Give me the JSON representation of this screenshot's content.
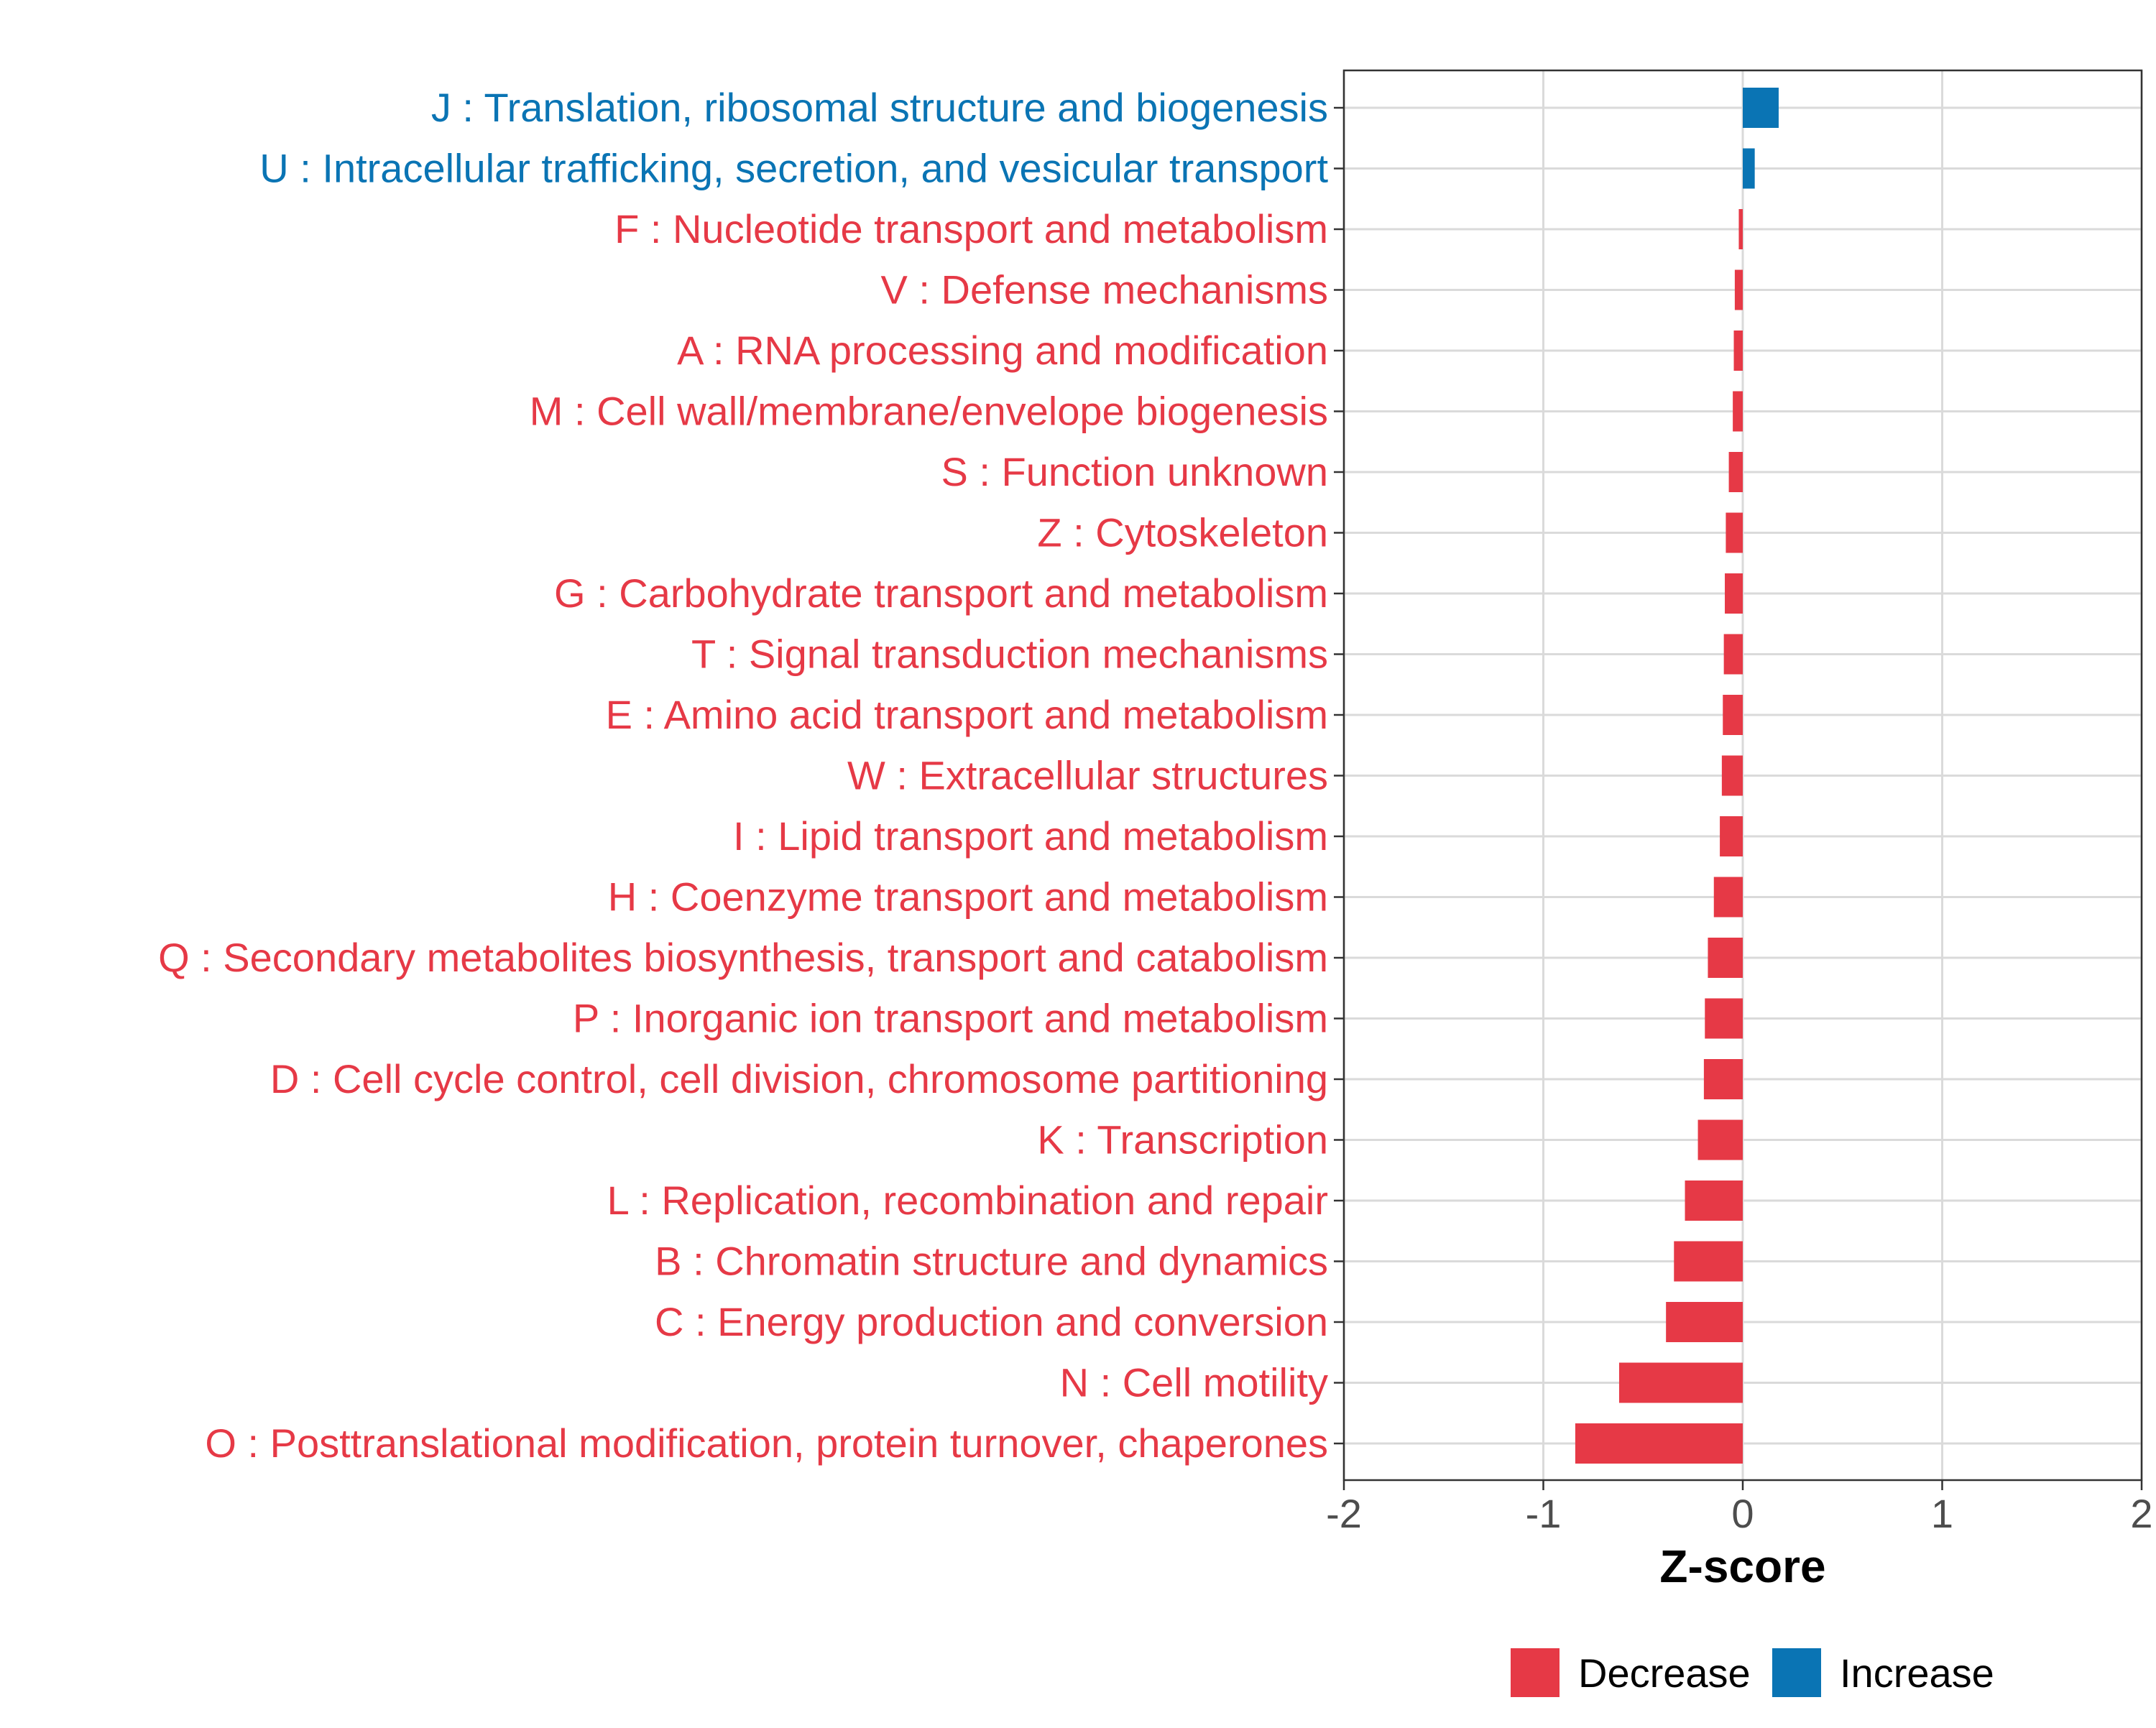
{
  "colors": {
    "decrease": "#E63946",
    "increase": "#0A74B4",
    "grid": "#DADADA",
    "axis_text": "#4D4D4D",
    "frame": "#333333"
  },
  "chart_data": {
    "type": "bar",
    "orientation": "horizontal",
    "title": "",
    "xlabel": "Z-score",
    "ylabel": "",
    "xlim": [
      -2,
      2
    ],
    "x_ticks": [
      -2,
      -1,
      0,
      1,
      2
    ],
    "x_tick_labels": [
      "-2",
      "-1",
      "0",
      "1",
      "2"
    ],
    "grid": true,
    "legend": {
      "position": "bottom",
      "entries": [
        {
          "label": "Decrease",
          "color_key": "decrease"
        },
        {
          "label": "Increase",
          "color_key": "increase"
        }
      ]
    },
    "categories": [
      {
        "label": "J : Translation, ribosomal structure and biogenesis",
        "value": 0.18,
        "direction": "increase"
      },
      {
        "label": "U : Intracellular trafficking, secretion, and vesicular transport",
        "value": 0.06,
        "direction": "increase"
      },
      {
        "label": "F : Nucleotide transport and metabolism",
        "value": -0.02,
        "direction": "decrease"
      },
      {
        "label": "V : Defense mechanisms",
        "value": -0.04,
        "direction": "decrease"
      },
      {
        "label": "A : RNA processing and modification",
        "value": -0.045,
        "direction": "decrease"
      },
      {
        "label": "M : Cell wall/membrane/envelope biogenesis",
        "value": -0.05,
        "direction": "decrease"
      },
      {
        "label": "S : Function unknown",
        "value": -0.07,
        "direction": "decrease"
      },
      {
        "label": "Z : Cytoskeleton",
        "value": -0.085,
        "direction": "decrease"
      },
      {
        "label": "G : Carbohydrate transport and metabolism",
        "value": -0.09,
        "direction": "decrease"
      },
      {
        "label": "T : Signal transduction mechanisms",
        "value": -0.095,
        "direction": "decrease"
      },
      {
        "label": "E : Amino acid transport and metabolism",
        "value": -0.1,
        "direction": "decrease"
      },
      {
        "label": "W : Extracellular structures",
        "value": -0.105,
        "direction": "decrease"
      },
      {
        "label": "I : Lipid transport and metabolism",
        "value": -0.115,
        "direction": "decrease"
      },
      {
        "label": "H : Coenzyme transport and metabolism",
        "value": -0.145,
        "direction": "decrease"
      },
      {
        "label": "Q : Secondary metabolites biosynthesis, transport and catabolism",
        "value": -0.175,
        "direction": "decrease"
      },
      {
        "label": "P : Inorganic ion transport and metabolism",
        "value": -0.19,
        "direction": "decrease"
      },
      {
        "label": "D : Cell cycle control, cell division, chromosome partitioning",
        "value": -0.195,
        "direction": "decrease"
      },
      {
        "label": "K : Transcription",
        "value": -0.225,
        "direction": "decrease"
      },
      {
        "label": "L : Replication, recombination and repair",
        "value": -0.29,
        "direction": "decrease"
      },
      {
        "label": "B : Chromatin structure and dynamics",
        "value": -0.345,
        "direction": "decrease"
      },
      {
        "label": "C : Energy production and conversion",
        "value": -0.385,
        "direction": "decrease"
      },
      {
        "label": "N : Cell motility",
        "value": -0.62,
        "direction": "decrease"
      },
      {
        "label": "O : Posttranslational modification, protein turnover, chaperones",
        "value": -0.84,
        "direction": "decrease"
      }
    ]
  }
}
